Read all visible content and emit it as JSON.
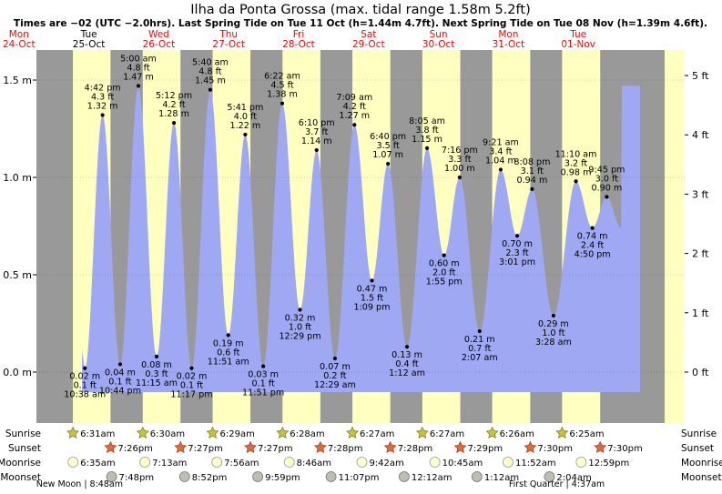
{
  "chart_data": {
    "type": "area",
    "title": "Ilha da Ponta Grossa (max. tidal range 1.58m 5.2ft)",
    "subtitle": "Times are −02 (UTC −2.0hrs). Last Spring Tide on Tue 11 Oct (h=1.44m 4.7ft). Next Spring Tide on Tue 08 Nov (h=1.39m 4.6ft).",
    "y_left_unit": "m",
    "y_right_unit": "ft",
    "ylim_m": [
      -0.1,
      1.56
    ],
    "y_ticks_m": [
      "0.0 m",
      "0.5 m",
      "1.0 m",
      "1.5 m"
    ],
    "y_ticks_m_values": [
      0.0,
      0.5,
      1.0,
      1.5
    ],
    "y_ticks_ft": [
      "0 ft",
      "1 ft",
      "2 ft",
      "3 ft",
      "4 ft",
      "5 ft"
    ],
    "y_ticks_ft_values": [
      0,
      1,
      2,
      3,
      4,
      5
    ],
    "days": [
      {
        "weekday": "Mon",
        "date": "24-Oct",
        "color": "#ff0000"
      },
      {
        "weekday": "Tue",
        "date": "25-Oct",
        "color": "#000000"
      },
      {
        "weekday": "Wed",
        "date": "26-Oct",
        "color": "#ff0000"
      },
      {
        "weekday": "Thu",
        "date": "27-Oct",
        "color": "#ff0000"
      },
      {
        "weekday": "Fri",
        "date": "28-Oct",
        "color": "#ff0000"
      },
      {
        "weekday": "Sat",
        "date": "29-Oct",
        "color": "#ff0000"
      },
      {
        "weekday": "Sun",
        "date": "30-Oct",
        "color": "#ff0000"
      },
      {
        "weekday": "Mon",
        "date": "31-Oct",
        "color": "#ff0000"
      },
      {
        "weekday": "Tue",
        "date": "01-Nov",
        "color": "#ff0000"
      }
    ],
    "tides": [
      {
        "t": 34.63,
        "h": 0.02,
        "type": "low",
        "time": "10:38 am",
        "ft": "0.1 ft",
        "m": "0.02 m"
      },
      {
        "t": 40.7,
        "h": 1.32,
        "type": "high",
        "time": "4:42 pm",
        "ft": "4.3 ft",
        "m": "1.32 m"
      },
      {
        "t": 46.73,
        "h": 0.04,
        "type": "low",
        "time": "10:44 pm",
        "ft": "0.1 ft",
        "m": "0.04 m"
      },
      {
        "t": 53.0,
        "h": 1.47,
        "type": "high",
        "time": "5:00 am",
        "ft": "4.8 ft",
        "m": "1.47 m"
      },
      {
        "t": 59.25,
        "h": 0.08,
        "type": "low",
        "time": "11:15 am",
        "ft": "0.3 ft",
        "m": "0.08 m"
      },
      {
        "t": 65.2,
        "h": 1.28,
        "type": "high",
        "time": "5:12 pm",
        "ft": "4.2 ft",
        "m": "1.28 m"
      },
      {
        "t": 71.28,
        "h": 0.02,
        "type": "low",
        "time": "11:17 pm",
        "ft": "0.1 ft",
        "m": "0.02 m"
      },
      {
        "t": 77.67,
        "h": 1.45,
        "type": "high",
        "time": "5:40 am",
        "ft": "4.8 ft",
        "m": "1.45 m"
      },
      {
        "t": 83.85,
        "h": 0.19,
        "type": "low",
        "time": "11:51 am",
        "ft": "0.6 ft",
        "m": "0.19 m"
      },
      {
        "t": 89.68,
        "h": 1.22,
        "type": "high",
        "time": "5:41 pm",
        "ft": "4.0 ft",
        "m": "1.22 m"
      },
      {
        "t": 95.85,
        "h": 0.03,
        "type": "low",
        "time": "11:51 pm",
        "ft": "0.1 ft",
        "m": "0.03 m"
      },
      {
        "t": 102.37,
        "h": 1.38,
        "type": "high",
        "time": "6:22 am",
        "ft": "4.5 ft",
        "m": "1.38 m"
      },
      {
        "t": 108.48,
        "h": 0.32,
        "type": "low",
        "time": "12:29 pm",
        "ft": "1.0 ft",
        "m": "0.32 m"
      },
      {
        "t": 114.17,
        "h": 1.14,
        "type": "high",
        "time": "6:10 pm",
        "ft": "3.7 ft",
        "m": "1.14 m"
      },
      {
        "t": 120.48,
        "h": 0.07,
        "type": "low",
        "time": "12:29 am",
        "ft": "0.2 ft",
        "m": "0.07 m"
      },
      {
        "t": 127.15,
        "h": 1.27,
        "type": "high",
        "time": "7:09 am",
        "ft": "4.2 ft",
        "m": "1.27 m"
      },
      {
        "t": 133.15,
        "h": 0.47,
        "type": "low",
        "time": "1:09 pm",
        "ft": "1.5 ft",
        "m": "0.47 m"
      },
      {
        "t": 138.67,
        "h": 1.07,
        "type": "high",
        "time": "6:40 pm",
        "ft": "3.5 ft",
        "m": "1.07 m"
      },
      {
        "t": 145.2,
        "h": 0.13,
        "type": "low",
        "time": "1:12 am",
        "ft": "0.4 ft",
        "m": "0.13 m"
      },
      {
        "t": 152.08,
        "h": 1.15,
        "type": "high",
        "time": "8:05 am",
        "ft": "3.8 ft",
        "m": "1.15 m"
      },
      {
        "t": 157.92,
        "h": 0.6,
        "type": "low",
        "time": "1:55 pm",
        "ft": "2.0 ft",
        "m": "0.60 m"
      },
      {
        "t": 163.27,
        "h": 1.0,
        "type": "high",
        "time": "7:16 pm",
        "ft": "3.3 ft",
        "m": "1.00 m"
      },
      {
        "t": 170.12,
        "h": 0.21,
        "type": "low",
        "time": "2:07 am",
        "ft": "0.7 ft",
        "m": "0.21 m"
      },
      {
        "t": 177.35,
        "h": 1.04,
        "type": "high",
        "time": "9:21 am",
        "ft": "3.4 ft",
        "m": "1.04 m"
      },
      {
        "t": 183.02,
        "h": 0.7,
        "type": "low",
        "time": "3:01 pm",
        "ft": "2.3 ft",
        "m": "0.70 m"
      },
      {
        "t": 188.13,
        "h": 0.94,
        "type": "high",
        "time": "8:08 pm",
        "ft": "3.1 ft",
        "m": "0.94 m"
      },
      {
        "t": 195.47,
        "h": 0.29,
        "type": "low",
        "time": "3:28 am",
        "ft": "1.0 ft",
        "m": "0.29 m"
      },
      {
        "t": 203.17,
        "h": 0.98,
        "type": "high",
        "time": "11:10 am",
        "ft": "3.2 ft",
        "m": "0.98 m"
      },
      {
        "t": 208.83,
        "h": 0.74,
        "type": "low",
        "time": "4:50 pm",
        "ft": "2.4 ft",
        "m": "0.74 m"
      },
      {
        "t": 213.75,
        "h": 0.9,
        "type": "high",
        "time": "9:45 pm",
        "ft": "3.0 ft",
        "m": "0.90 m"
      }
    ],
    "daylight": [
      {
        "rise": 30.52,
        "set": 43.43
      },
      {
        "rise": 54.5,
        "set": 67.45
      },
      {
        "rise": 78.48,
        "set": 91.45
      },
      {
        "rise": 102.47,
        "set": 115.47
      },
      {
        "rise": 126.45,
        "set": 139.47
      },
      {
        "rise": 150.45,
        "set": 163.48
      },
      {
        "rise": 174.43,
        "set": 187.5
      },
      {
        "rise": 198.42,
        "set": 211.5
      }
    ],
    "row_labels": {
      "sunrise": "Sunrise",
      "sunset": "Sunset",
      "moonrise": "Moonrise",
      "moonset": "Moonset"
    },
    "sunrise": [
      {
        "t": 30.52,
        "label": "6:31am"
      },
      {
        "t": 54.5,
        "label": "6:30am"
      },
      {
        "t": 78.48,
        "label": "6:29am"
      },
      {
        "t": 102.47,
        "label": "6:28am"
      },
      {
        "t": 126.45,
        "label": "6:27am"
      },
      {
        "t": 150.45,
        "label": "6:27am"
      },
      {
        "t": 174.43,
        "label": "6:26am"
      },
      {
        "t": 198.42,
        "label": "6:25am"
      }
    ],
    "sunset": [
      {
        "t": 43.43,
        "label": "7:26pm"
      },
      {
        "t": 67.45,
        "label": "7:27pm"
      },
      {
        "t": 91.45,
        "label": "7:27pm"
      },
      {
        "t": 115.47,
        "label": "7:28pm"
      },
      {
        "t": 139.47,
        "label": "7:28pm"
      },
      {
        "t": 163.48,
        "label": "7:29pm"
      },
      {
        "t": 187.5,
        "label": "7:30pm"
      },
      {
        "t": 211.5,
        "label": "7:30pm"
      }
    ],
    "moonrise": [
      {
        "t": 30.58,
        "label": "6:35am"
      },
      {
        "t": 55.22,
        "label": "7:13am"
      },
      {
        "t": 79.93,
        "label": "7:56am"
      },
      {
        "t": 104.77,
        "label": "8:46am"
      },
      {
        "t": 129.7,
        "label": "9:42am"
      },
      {
        "t": 154.75,
        "label": "10:45am"
      },
      {
        "t": 179.87,
        "label": "11:52am"
      },
      {
        "t": 204.98,
        "label": "12:59pm"
      }
    ],
    "moonset": [
      {
        "t": 43.8,
        "label": "7:48pm"
      },
      {
        "t": 68.87,
        "label": "8:52pm"
      },
      {
        "t": 93.98,
        "label": "9:59pm"
      },
      {
        "t": 119.12,
        "label": "11:07pm"
      },
      {
        "t": 144.2,
        "label": "12:12am"
      },
      {
        "t": 169.2,
        "label": "1:12am"
      },
      {
        "t": 194.07,
        "label": "2:04am"
      }
    ],
    "moon_phases": [
      {
        "text": "New Moon | 8:48am",
        "t": 32.8
      },
      {
        "text": "First Quarter | 4:37am",
        "t": 196.6
      }
    ]
  }
}
